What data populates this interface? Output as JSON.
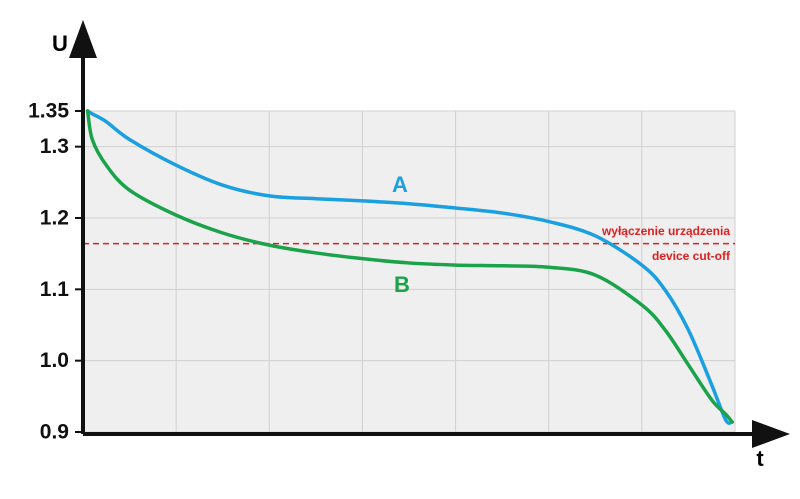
{
  "chart_data": {
    "type": "line",
    "y_label": "U",
    "x_label": "t",
    "ylim": [
      0.9,
      1.35
    ],
    "yticks": [
      0.9,
      1.0,
      1.1,
      1.2,
      1.3,
      1.35
    ],
    "yticklabels": [
      "0.9",
      "1.0",
      "1.1",
      "1.2",
      "1.3",
      "1.35"
    ],
    "xlim": [
      0,
      7
    ],
    "grid": true,
    "x": [
      0.05,
      0.1,
      0.25,
      0.5,
      1,
      1.5,
      2,
      2.5,
      3,
      3.5,
      4,
      4.5,
      5,
      5.5,
      6,
      6.25,
      6.5,
      6.75,
      6.9,
      6.97
    ],
    "series": [
      {
        "name": "A",
        "color": "#1a9fe0",
        "values": [
          1.35,
          1.346,
          1.335,
          1.31,
          1.274,
          1.246,
          1.231,
          1.227,
          1.224,
          1.22,
          1.214,
          1.207,
          1.195,
          1.175,
          1.134,
          1.099,
          1.043,
          0.966,
          0.917,
          0.914
        ]
      },
      {
        "name": "B",
        "color": "#1aa34a",
        "values": [
          1.35,
          1.31,
          1.274,
          1.239,
          1.204,
          1.179,
          1.162,
          1.151,
          1.143,
          1.137,
          1.134,
          1.133,
          1.131,
          1.12,
          1.078,
          1.043,
          0.994,
          0.945,
          0.925,
          0.914
        ]
      }
    ],
    "cutoff": {
      "value": 1.164,
      "color": "#e02020",
      "labels": [
        "wyłączenie urządzenia",
        "device cut-off"
      ]
    }
  }
}
